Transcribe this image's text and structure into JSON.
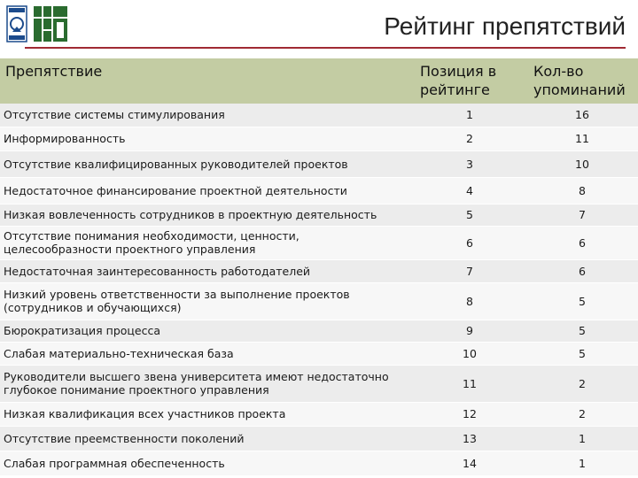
{
  "header": {
    "title": "Рейтинг препятствий"
  },
  "table": {
    "columns": [
      "Препятствие",
      "Позиция в рейтинге",
      "Кол-во упоминаний"
    ],
    "rows": [
      {
        "name": "Отсутствие системы стимулирования",
        "position": "1",
        "count": "16"
      },
      {
        "name": "Информированность",
        "position": "2",
        "count": "11"
      },
      {
        "name": "Отсутствие квалифицированных руководителей проектов",
        "position": "3",
        "count": "10"
      },
      {
        "name": "Недостаточное финансирование проектной деятельности",
        "position": "4",
        "count": "8"
      },
      {
        "name": "Низкая вовлеченность сотрудников в проектную деятельность",
        "position": "5",
        "count": "7"
      },
      {
        "name": "Отсутствие понимания необходимости, ценности, целесообразности проектного управления",
        "position": "6",
        "count": "6"
      },
      {
        "name": "Недостаточная заинтересованность работодателей",
        "position": "7",
        "count": "6"
      },
      {
        "name": "Низкий уровень ответственности за выполнение проектов (сотрудников и обучающихся)",
        "position": "8",
        "count": "5"
      },
      {
        "name": "Бюрократизация процесса",
        "position": "9",
        "count": "5"
      },
      {
        "name": "Слабая материально-техническая база",
        "position": "10",
        "count": "5"
      },
      {
        "name": "Руководители высшего звена университета имеют недостаточно глубокое понимание проектного управления",
        "position": "11",
        "count": "2"
      },
      {
        "name": "Низкая квалификация всех участников проекта",
        "position": "12",
        "count": "2"
      },
      {
        "name": "Отсутствие преемственности поколений",
        "position": "13",
        "count": "1"
      },
      {
        "name": "Слабая программная обеспеченность",
        "position": "14",
        "count": "1"
      }
    ]
  }
}
